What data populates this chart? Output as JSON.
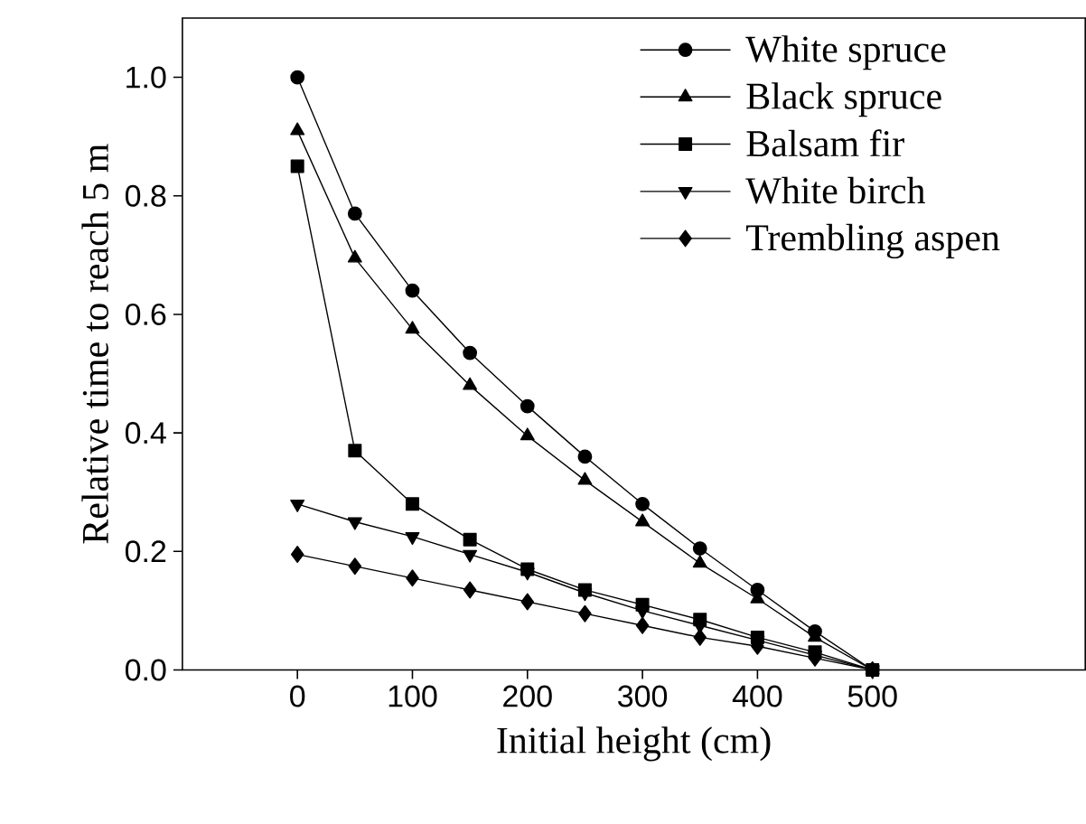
{
  "chart_data": {
    "type": "line",
    "xlabel": "Initial height (cm)",
    "ylabel": "Relative time to reach 5 m",
    "x": [
      0,
      50,
      100,
      150,
      200,
      250,
      300,
      350,
      400,
      450,
      500
    ],
    "series": [
      {
        "name": "White spruce",
        "color": "#000000",
        "marker": "circle",
        "values": [
          1.0,
          0.77,
          0.64,
          0.535,
          0.445,
          0.36,
          0.28,
          0.205,
          0.135,
          0.065,
          0
        ]
      },
      {
        "name": "Black spruce",
        "color": "#000000",
        "marker": "triangle",
        "values": [
          0.91,
          0.695,
          0.575,
          0.48,
          0.395,
          0.32,
          0.25,
          0.18,
          0.12,
          0.055,
          0
        ]
      },
      {
        "name": "Balsam fir",
        "color": "#000000",
        "marker": "square",
        "values": [
          0.85,
          0.37,
          0.28,
          0.22,
          0.17,
          0.135,
          0.11,
          0.085,
          0.055,
          0.03,
          0
        ]
      },
      {
        "name": "White birch",
        "color": "#000000",
        "marker": "triangle-down",
        "values": [
          0.28,
          0.25,
          0.225,
          0.195,
          0.165,
          0.13,
          0.1,
          0.075,
          0.05,
          0.025,
          0
        ]
      },
      {
        "name": "Trembling aspen",
        "color": "#000000",
        "marker": "diamond",
        "values": [
          0.195,
          0.175,
          0.155,
          0.135,
          0.115,
          0.095,
          0.075,
          0.055,
          0.04,
          0.02,
          0
        ]
      }
    ],
    "xlim": [
      -100,
      685
    ],
    "xticks": [
      0,
      100,
      200,
      300,
      400,
      500
    ],
    "ylim": [
      0,
      1.1
    ],
    "yticks": [
      {
        "value": 0,
        "label": "0.0"
      },
      {
        "value": 0.2,
        "label": "0.2"
      },
      {
        "value": 0.4,
        "label": "0.4"
      },
      {
        "value": 0.6,
        "label": "0.6"
      },
      {
        "value": 0.8,
        "label": "0.8"
      },
      {
        "value": 1.0,
        "label": "1.0"
      }
    ],
    "legend": "top right",
    "grid": false,
    "line_style": "solid"
  }
}
